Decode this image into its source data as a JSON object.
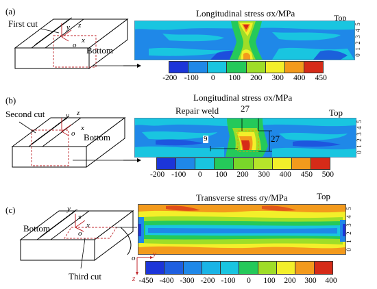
{
  "panels": [
    {
      "label": "(a)",
      "cut_label": "First cut",
      "bottom_label": "Bottom",
      "axes": {
        "y": "y",
        "z": "z",
        "o": "o",
        "x": "x"
      },
      "map_title": "Longitudinal stress σx/MPa",
      "top_label": "Top",
      "scale": [
        "0",
        "1",
        "2",
        "3",
        "4",
        "5"
      ],
      "colorbar_ticks": [
        "-200",
        "-100",
        "0",
        "100",
        "200",
        "300",
        "400",
        "450"
      ],
      "colorbar_colors": [
        "#1c35d9",
        "#1f88e8",
        "#19c5e0",
        "#25c95a",
        "#9fdd28",
        "#f3ef2a",
        "#f39a1c",
        "#d62b18"
      ]
    },
    {
      "label": "(b)",
      "cut_label": "Second cut",
      "bottom_label": "Bottom",
      "axes": {
        "y": "y",
        "z": "z",
        "o": "o",
        "x": "x"
      },
      "map_title": "Longitudinal stress σx/MPa",
      "top_label": "Top",
      "repair_label": "Repair weld",
      "dim_width": "27",
      "dim_height": "27",
      "dim_offset": "9",
      "scale": [
        "0",
        "1",
        "2",
        "3",
        "4",
        "5"
      ],
      "colorbar_ticks": [
        "-200",
        "-100",
        "0",
        "100",
        "200",
        "300",
        "400",
        "450",
        "500"
      ],
      "colorbar_colors": [
        "#1c35d9",
        "#1f88e8",
        "#19c5e0",
        "#25c95a",
        "#79d72a",
        "#b6e52a",
        "#f3ef2a",
        "#f39a1c",
        "#d62b18"
      ]
    },
    {
      "label": "(c)",
      "cut_label": "Third cut",
      "bottom_label": "Bottom",
      "axes": {
        "y": "y",
        "z": "z",
        "o": "o",
        "x": "x"
      },
      "map_title": "Transverse stress σy/MPa",
      "top_label": "Top",
      "map_axes": {
        "o": "o",
        "y": "y",
        "z": "z"
      },
      "scale": [
        "0",
        "1",
        "2",
        "3",
        "4",
        "5"
      ],
      "colorbar_ticks": [
        "-450",
        "-400",
        "-300",
        "-200",
        "-100",
        "0",
        "100",
        "200",
        "300",
        "400"
      ],
      "colorbar_colors": [
        "#1c35d9",
        "#1f5fe0",
        "#1f88e8",
        "#19b4e6",
        "#19c5e0",
        "#25c95a",
        "#9fdd28",
        "#f3ef2a",
        "#f39a1c",
        "#d62b18"
      ]
    }
  ]
}
